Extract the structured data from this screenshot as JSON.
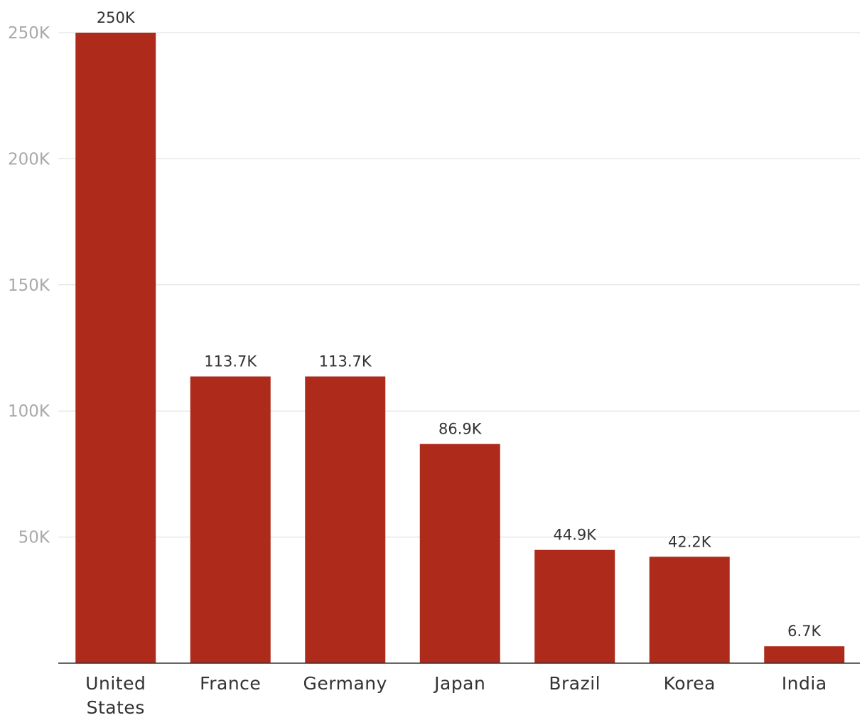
{
  "chart_data": {
    "type": "bar",
    "title": "",
    "xlabel": "",
    "ylabel": "",
    "categories": [
      [
        "United",
        "States"
      ],
      [
        "France"
      ],
      [
        "Germany"
      ],
      [
        "Japan"
      ],
      [
        "Brazil"
      ],
      [
        "Korea"
      ],
      [
        "India"
      ]
    ],
    "values": [
      250000,
      113700,
      113700,
      86900,
      44900,
      42200,
      6700
    ],
    "value_labels": [
      "250K",
      "113.7K",
      "113.7K",
      "86.9K",
      "44.9K",
      "42.2K",
      "6.7K"
    ],
    "ylim": [
      0,
      250000
    ],
    "yticks": [
      50000,
      100000,
      150000,
      200000,
      250000
    ],
    "ytick_labels": [
      "50K",
      "100K",
      "150K",
      "200K",
      "250K"
    ],
    "grid": true,
    "bar_color": "#ae2a1a"
  }
}
